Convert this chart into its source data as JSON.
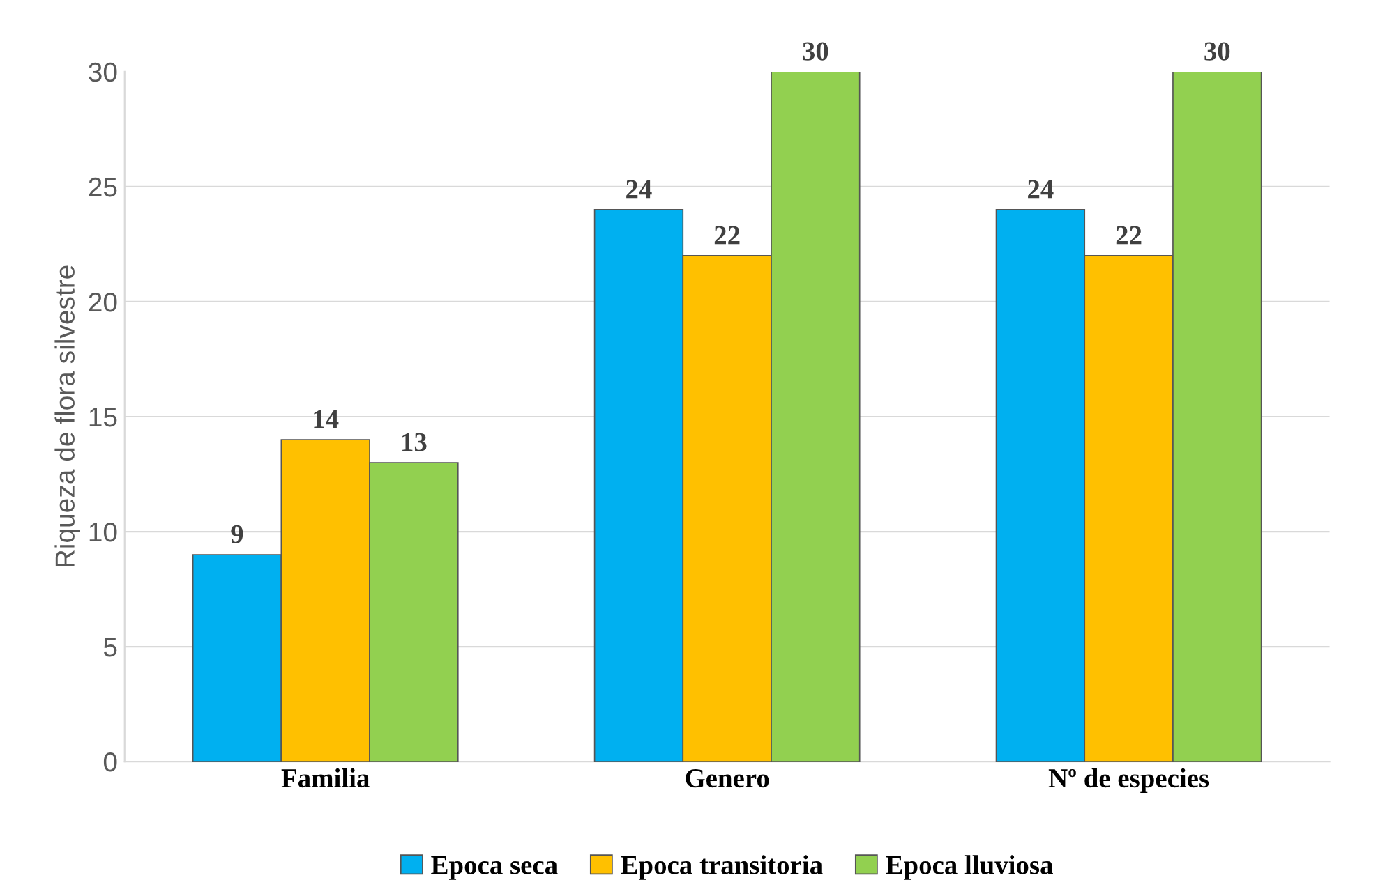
{
  "chart_data": {
    "type": "bar",
    "ylabel": "Riqueza de flora silvestre",
    "categories": [
      "Familia",
      "Genero",
      "Nº de especies"
    ],
    "series": [
      {
        "name": "Epoca seca",
        "color": "#00b0f0",
        "values": [
          9,
          24,
          24
        ]
      },
      {
        "name": "Epoca transitoria",
        "color": "#ffc000",
        "values": [
          14,
          22,
          22
        ]
      },
      {
        "name": "Epoca lluviosa",
        "color": "#92d050",
        "values": [
          13,
          30,
          30
        ]
      }
    ],
    "ylim": [
      0,
      30
    ],
    "yticks": [
      0,
      5,
      10,
      15,
      20,
      25,
      30
    ],
    "grid": "y",
    "legend": "bottom",
    "data_labels": true
  }
}
